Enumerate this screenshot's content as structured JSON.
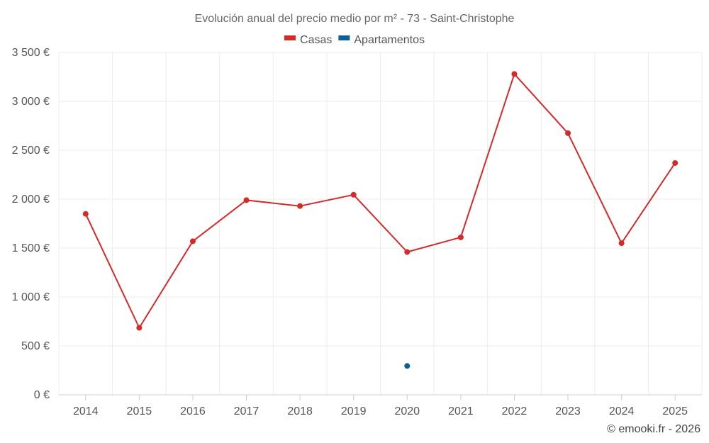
{
  "chart_data": {
    "type": "line",
    "title": "Evolución anual del precio medio por m² - 73 - Saint-Christophe",
    "categories": [
      "2014",
      "2015",
      "2016",
      "2017",
      "2018",
      "2019",
      "2020",
      "2021",
      "2022",
      "2023",
      "2024",
      "2025"
    ],
    "series": [
      {
        "name": "Casas",
        "color": "#d42a2a",
        "values": [
          1850,
          685,
          1570,
          1990,
          1930,
          2045,
          1460,
          1610,
          3280,
          2675,
          1550,
          2370
        ]
      },
      {
        "name": "Apartamentos",
        "color": "#0e5f96",
        "values": [
          null,
          null,
          null,
          null,
          null,
          null,
          295,
          null,
          null,
          null,
          null,
          null
        ]
      }
    ],
    "ylim": [
      0,
      3500
    ],
    "yticks": [
      0,
      500,
      1000,
      1500,
      2000,
      2500,
      3000,
      3500
    ],
    "ytick_labels": [
      "0 €",
      "500 €",
      "1 000 €",
      "1 500 €",
      "2 000 €",
      "2 500 €",
      "3 000 €",
      "3 500 €"
    ],
    "grid": true,
    "legend_position": "top-center"
  },
  "credit": "© emooki.fr - 2026"
}
